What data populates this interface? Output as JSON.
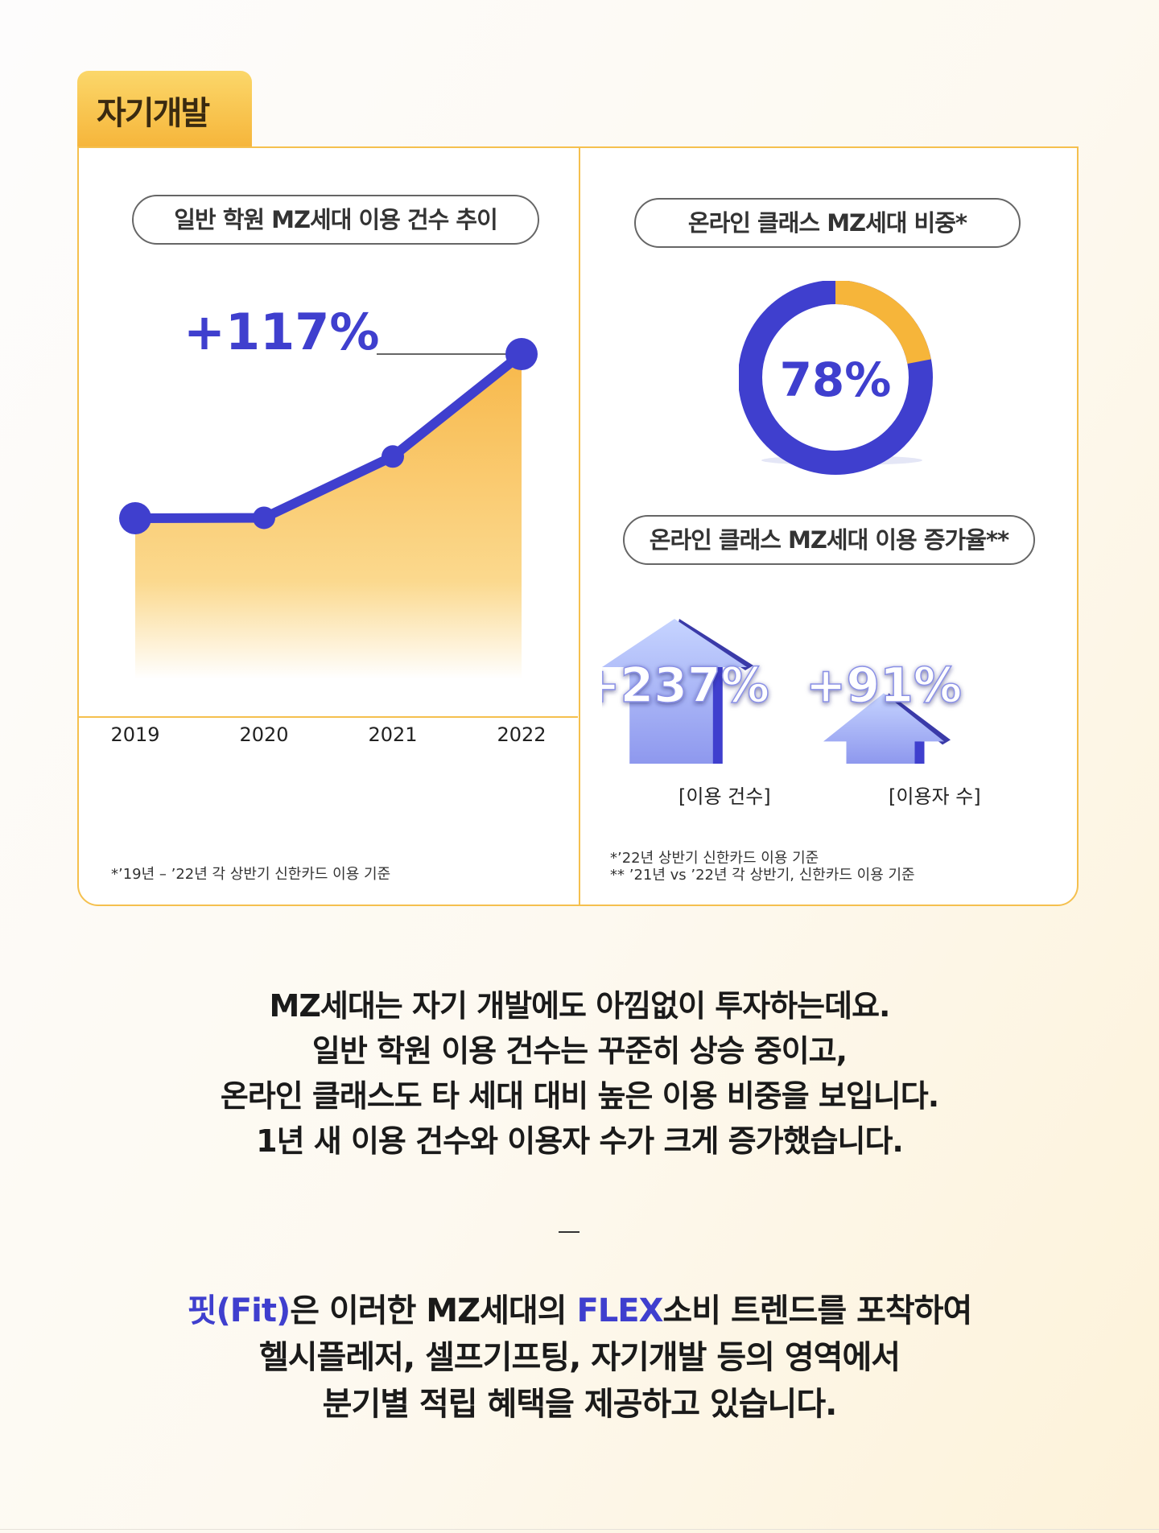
{
  "tab": {
    "label": "자기개발"
  },
  "left_panel": {
    "pill": "일반 학원 MZ세대 이용 건수 추이",
    "callout": "+117%",
    "note": "*’19년 – ’22년 각 상반기 신한카드 이용 기준"
  },
  "right_panel": {
    "pill_top": "온라인 클래스 MZ세대 비중*",
    "donut_label": "78%",
    "pill_bottom": "온라인 클래스 MZ세대 이용 증가율**",
    "arrows": [
      {
        "value": "+237%",
        "caption": "[이용 건수]"
      },
      {
        "value": "+91%",
        "caption": "[이용자 수]"
      }
    ],
    "note_1": "*’22년 상반기 신한카드 이용 기준",
    "note_2": "** ’21년 vs ’22년 각 상반기, 신한카드 이용 기준"
  },
  "chart_data": [
    {
      "type": "area",
      "title": "일반 학원 MZ세대 이용 건수 추이",
      "categories": [
        "2019",
        "2020",
        "2021",
        "2022"
      ],
      "values": [
        100,
        100.3,
        144,
        217
      ],
      "annotation": "+117%"
    },
    {
      "type": "pie",
      "title": "온라인 클래스 MZ세대 비중*",
      "slices": [
        {
          "label": "MZ세대",
          "value": 78
        },
        {
          "label": "other",
          "value": 22
        }
      ],
      "center_label": "78%"
    },
    {
      "type": "bar",
      "title": "온라인 클래스 MZ세대 이용 증가율**",
      "categories": [
        "[이용 건수]",
        "[이용자 수]"
      ],
      "values": [
        237,
        91
      ],
      "labels": [
        "+237%",
        "+91%"
      ]
    }
  ],
  "colors": {
    "accent_blue": "#3f3fce",
    "accent_yellow": "#f6b53a",
    "arrow_light": "#b8c6f8"
  },
  "body": {
    "lines": [
      "MZ세대는 자기 개발에도 아낌없이 투자하는데요.",
      "일반 학원 이용 건수는 꾸준히 상승 중이고,",
      "온라인 클래스도 타 세대 대비 높은 이용 비중을 보입니다.",
      "1년 새 이용 건수와 이용자 수가 크게 증가했습니다."
    ],
    "dash": "–",
    "fit": {
      "line1_a": "핏(Fit)",
      "line1_b": "은 이러한 MZ세대의 ",
      "line1_c": "FLEX",
      "line1_d": "소비 트렌드를 포착하여",
      "line2": "헬시플레저, 셀프기프팅, 자기개발 등의 영역에서",
      "line3": "분기별 적립 혜택을 제공하고 있습니다."
    }
  }
}
